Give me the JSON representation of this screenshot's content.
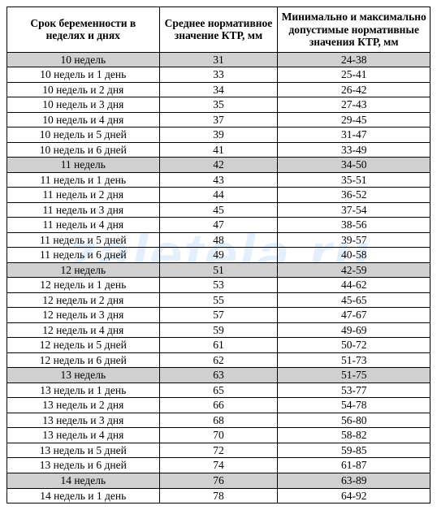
{
  "watermark": "zaletela.ru",
  "table": {
    "columns": [
      "Срок беременности в неделях и днях",
      "Среднее нормативное значение КТР, мм",
      "Минимально и максимально допустимые нормативные значения КТР, мм"
    ],
    "rows": [
      {
        "summary": true,
        "term": "10 недель",
        "avg": "31",
        "range": "24-38"
      },
      {
        "summary": false,
        "term": "10 недель и 1 день",
        "avg": "33",
        "range": "25-41"
      },
      {
        "summary": false,
        "term": "10 недель и 2 дня",
        "avg": "34",
        "range": "26-42"
      },
      {
        "summary": false,
        "term": "10 недель и 3 дня",
        "avg": "35",
        "range": "27-43"
      },
      {
        "summary": false,
        "term": "10 недель и 4 дня",
        "avg": "37",
        "range": "29-45"
      },
      {
        "summary": false,
        "term": "10 недель и 5 дней",
        "avg": "39",
        "range": "31-47"
      },
      {
        "summary": false,
        "term": "10 недель и 6 дней",
        "avg": "41",
        "range": "33-49"
      },
      {
        "summary": true,
        "term": "11 недель",
        "avg": "42",
        "range": "34-50"
      },
      {
        "summary": false,
        "term": "11 недель и 1 день",
        "avg": "43",
        "range": "35-51"
      },
      {
        "summary": false,
        "term": "11 недель и 2 дня",
        "avg": "44",
        "range": "36-52"
      },
      {
        "summary": false,
        "term": "11 недель и 3 дня",
        "avg": "45",
        "range": "37-54"
      },
      {
        "summary": false,
        "term": "11 недель и 4 дня",
        "avg": "47",
        "range": "38-56"
      },
      {
        "summary": false,
        "term": "11 недель и 5 дней",
        "avg": "48",
        "range": "39-57"
      },
      {
        "summary": false,
        "term": "11 недель и 6 дней",
        "avg": "49",
        "range": "40-58"
      },
      {
        "summary": true,
        "term": "12 недель",
        "avg": "51",
        "range": "42-59"
      },
      {
        "summary": false,
        "term": "12 недель и 1 день",
        "avg": "53",
        "range": "44-62"
      },
      {
        "summary": false,
        "term": "12 недель и 2 дня",
        "avg": "55",
        "range": "45-65"
      },
      {
        "summary": false,
        "term": "12 недель и 3 дня",
        "avg": "57",
        "range": "47-67"
      },
      {
        "summary": false,
        "term": "12 недель и 4 дня",
        "avg": "59",
        "range": "49-69"
      },
      {
        "summary": false,
        "term": "12 недель и 5 дней",
        "avg": "61",
        "range": "50-72"
      },
      {
        "summary": false,
        "term": "12 недель и 6 дней",
        "avg": "62",
        "range": "51-73"
      },
      {
        "summary": true,
        "term": "13 недель",
        "avg": "63",
        "range": "51-75"
      },
      {
        "summary": false,
        "term": "13 недель и 1 день",
        "avg": "65",
        "range": "53-77"
      },
      {
        "summary": false,
        "term": "13 недель и 2 дня",
        "avg": "66",
        "range": "54-78"
      },
      {
        "summary": false,
        "term": "13 недель и 3 дня",
        "avg": "68",
        "range": "56-80"
      },
      {
        "summary": false,
        "term": "13 недель и 4 дня",
        "avg": "70",
        "range": "58-82"
      },
      {
        "summary": false,
        "term": "13 недель и 5 дней",
        "avg": "72",
        "range": "59-85"
      },
      {
        "summary": false,
        "term": "13 недель и 6 дней",
        "avg": "74",
        "range": "61-87"
      },
      {
        "summary": true,
        "term": "14 недель",
        "avg": "76",
        "range": "63-89"
      },
      {
        "summary": false,
        "term": "14 недель и 1 день",
        "avg": "78",
        "range": "64-92"
      }
    ]
  },
  "style": {
    "summary_bg": "#d0d0d0",
    "border_color": "#000000",
    "font_family": "Times New Roman",
    "header_fontsize": 13.5,
    "cell_fontsize": 13.5,
    "watermark_color": "rgba(70,150,230,0.15)"
  }
}
